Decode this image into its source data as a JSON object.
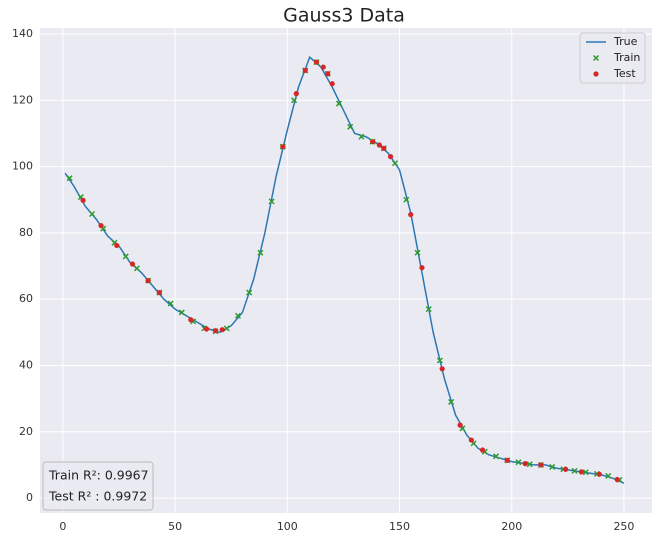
{
  "chart_data": {
    "type": "line",
    "title": "Gauss3 Data",
    "xlim": [
      -10.2,
      262.5
    ],
    "ylim": [
      -4.5,
      141.8
    ],
    "xticks": [
      0,
      50,
      100,
      150,
      200,
      250
    ],
    "yticks": [
      0,
      20,
      40,
      60,
      80,
      100,
      120,
      140
    ],
    "grid": true,
    "legend": "upper right",
    "series": [
      {
        "name": "True",
        "type": "line",
        "color": "#2a77b4",
        "x": [
          1,
          5,
          10,
          15,
          20,
          25,
          30,
          35,
          40,
          45,
          50,
          55,
          60,
          65,
          70,
          75,
          80,
          85,
          90,
          95,
          100,
          105,
          110,
          115,
          120,
          125,
          130,
          135,
          140,
          145,
          150,
          155,
          160,
          165,
          170,
          175,
          180,
          185,
          190,
          195,
          200,
          205,
          210,
          215,
          220,
          225,
          230,
          235,
          240,
          245,
          250
        ],
        "values": [
          98,
          94,
          88,
          84,
          79,
          76,
          71,
          68,
          64,
          60,
          57,
          55,
          53,
          51,
          50,
          52,
          56,
          66,
          80,
          97,
          111,
          124,
          133,
          130,
          124,
          117,
          110,
          109,
          107,
          104,
          99,
          86,
          68,
          50,
          36,
          25,
          19,
          15,
          13,
          12,
          11,
          10.5,
          10,
          10,
          9,
          8.5,
          8,
          7.5,
          7,
          6,
          4.5
        ]
      },
      {
        "name": "Train",
        "type": "scatter",
        "marker": "x",
        "color": "#2e9a2e",
        "x": [
          3,
          8,
          13,
          18,
          23,
          28,
          33,
          38,
          43,
          48,
          53,
          58,
          63,
          68,
          73,
          78,
          83,
          88,
          93,
          98,
          103,
          108,
          113,
          118,
          123,
          128,
          133,
          138,
          143,
          148,
          153,
          158,
          163,
          168,
          173,
          178,
          183,
          188,
          193,
          198,
          203,
          208,
          213,
          218,
          223,
          228,
          233,
          238,
          243,
          248
        ],
        "values": [
          96.5,
          90.8,
          85.7,
          81.3,
          77,
          72.9,
          69.3,
          65.6,
          62,
          58.7,
          56,
          53.3,
          51.2,
          50.3,
          51.2,
          55,
          62,
          74,
          89.5,
          106,
          120,
          129,
          131.5,
          128,
          119,
          112,
          109,
          107.5,
          105.5,
          101,
          90,
          74,
          57,
          41.5,
          29,
          21,
          16.5,
          14,
          12.6,
          11.4,
          10.8,
          10.2,
          10,
          9.4,
          8.7,
          8.2,
          7.8,
          7.3,
          6.7,
          5.5
        ]
      },
      {
        "name": "Test",
        "type": "scatter",
        "marker": "o",
        "color": "#d62728",
        "x": [
          9,
          17,
          24,
          31,
          38,
          43,
          57,
          64,
          68,
          71,
          98,
          104,
          108,
          113,
          116,
          118,
          120,
          138,
          141,
          143,
          146,
          155,
          160,
          169,
          177,
          182,
          187,
          198,
          206,
          213,
          224,
          231,
          239,
          247
        ],
        "values": [
          89.8,
          82.2,
          76.2,
          70.6,
          65.6,
          62,
          53.8,
          51,
          50.5,
          50.8,
          106,
          122,
          129,
          131.5,
          130,
          128,
          125,
          107.5,
          106.5,
          105.5,
          103,
          85.5,
          69.5,
          39,
          22,
          17.5,
          14.5,
          11.4,
          10.4,
          10,
          8.7,
          7.9,
          7.2,
          5.6
        ]
      }
    ],
    "annotations": [
      "Train R²: 0.9967",
      "Test R² : 0.9972"
    ]
  }
}
